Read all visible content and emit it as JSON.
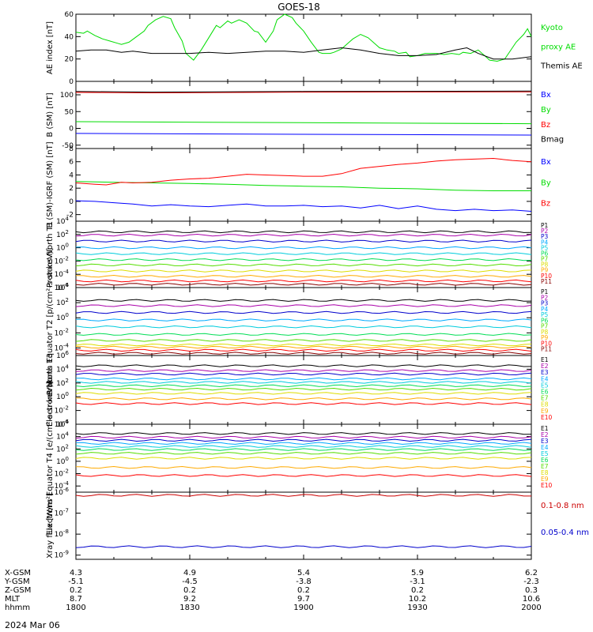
{
  "title": "GOES-18",
  "date_label": "2024 Mar 06",
  "orbit_table": {
    "row_labels": [
      "X-GSM",
      "Y-GSM",
      "Z-GSM",
      "MLT",
      "hhmm"
    ],
    "columns": [
      [
        "4.3",
        "-5.1",
        "0.2",
        "8.7",
        "1800"
      ],
      [
        "4.9",
        "-4.5",
        "0.2",
        "9.2",
        "1830"
      ],
      [
        "5.4",
        "-3.8",
        "0.2",
        "9.7",
        "1900"
      ],
      [
        "5.9",
        "-3.1",
        "0.2",
        "10.2",
        "1930"
      ],
      [
        "6.2",
        "-2.3",
        "0.3",
        "10.6",
        "2000"
      ]
    ]
  },
  "chart_data": [
    {
      "type": "line",
      "ylabel": "AE index [nT]",
      "ylim": [
        0,
        60
      ],
      "yticks": [
        "0",
        "20",
        "40",
        "60"
      ],
      "x": "time 18:00 - 20:00 UT",
      "series": [
        {
          "name": "Kyoto proxy AE",
          "color": "#00dd00",
          "x": [
            0,
            2,
            3,
            5,
            7,
            9,
            11,
            12,
            14,
            16,
            18,
            19,
            21,
            23,
            25,
            26,
            28,
            29,
            31,
            33,
            35,
            37,
            38,
            40,
            41,
            43,
            45,
            47,
            48,
            50,
            52,
            53,
            55,
            57,
            58,
            60,
            62,
            64,
            65,
            67,
            68,
            70,
            72,
            73,
            75,
            77,
            79,
            80,
            82,
            84,
            85,
            87,
            88,
            90,
            92,
            94,
            95,
            97,
            99,
            101,
            102,
            104,
            106,
            108,
            109,
            111,
            113,
            114,
            116,
            118,
            119,
            120
          ],
          "values": [
            44,
            43,
            45,
            41,
            38,
            36,
            34,
            33,
            35,
            40,
            45,
            50,
            55,
            58,
            56,
            48,
            36,
            25,
            19,
            28,
            39,
            50,
            48,
            54,
            52,
            55,
            52,
            45,
            44,
            35,
            45,
            55,
            60,
            57,
            52,
            45,
            35,
            26,
            25,
            25,
            26,
            29,
            35,
            38,
            42,
            39,
            33,
            30,
            28,
            27,
            25,
            26,
            22,
            23,
            25,
            25,
            25,
            24,
            25,
            24,
            26,
            25,
            28,
            22,
            19,
            18,
            20,
            25,
            35,
            42,
            47,
            40
          ]
        },
        {
          "name": "Themis AE",
          "color": "#000000",
          "x": [
            0,
            4,
            8,
            12,
            15,
            20,
            25,
            30,
            35,
            40,
            45,
            50,
            55,
            60,
            65,
            70,
            75,
            80,
            85,
            90,
            95,
            100,
            103,
            106,
            110,
            115,
            120
          ],
          "values": [
            27,
            28,
            28,
            26,
            27,
            25,
            25,
            25,
            26,
            25,
            26,
            27,
            27,
            26,
            28,
            30,
            28,
            25,
            23,
            23,
            24,
            28,
            30,
            25,
            20,
            20,
            22
          ]
        }
      ]
    },
    {
      "type": "line",
      "ylabel": "B (SM) [nT]",
      "ylim": [
        -60,
        140
      ],
      "yticks": [
        "-50",
        "0",
        "50",
        "100"
      ],
      "series": [
        {
          "name": "Bx",
          "color": "#0000ff",
          "x": [
            0,
            120
          ],
          "values": [
            -15,
            -20
          ]
        },
        {
          "name": "By",
          "color": "#00dd00",
          "x": [
            0,
            120
          ],
          "values": [
            20,
            14
          ]
        },
        {
          "name": "Bz",
          "color": "#ff0000",
          "x": [
            0,
            20,
            60,
            120
          ],
          "values": [
            107,
            106,
            108,
            109
          ]
        },
        {
          "name": "Bmag",
          "color": "#000000",
          "x": [
            0,
            20,
            60,
            120
          ],
          "values": [
            110,
            108,
            110,
            111
          ]
        }
      ]
    },
    {
      "type": "line",
      "ylabel": "B (SM)-IGRF (SM) [nT]",
      "ylim": [
        -3,
        8
      ],
      "yticks": [
        "-2",
        "0",
        "2",
        "4",
        "6",
        "8"
      ],
      "series": [
        {
          "name": "Bx",
          "color": "#0000ff",
          "x": [
            0,
            5,
            10,
            15,
            20,
            25,
            30,
            35,
            40,
            45,
            50,
            55,
            60,
            65,
            70,
            75,
            80,
            85,
            90,
            95,
            100,
            105,
            110,
            115,
            120
          ],
          "values": [
            0.1,
            0.0,
            -0.2,
            -0.4,
            -0.7,
            -0.5,
            -0.7,
            -0.8,
            -0.6,
            -0.4,
            -0.7,
            -0.7,
            -0.6,
            -0.8,
            -0.7,
            -1.0,
            -0.6,
            -1.1,
            -0.7,
            -1.2,
            -1.4,
            -1.2,
            -1.4,
            -1.3,
            -1.5
          ]
        },
        {
          "name": "By",
          "color": "#00dd00",
          "x": [
            0,
            10,
            20,
            30,
            40,
            50,
            60,
            70,
            80,
            90,
            100,
            110,
            120
          ],
          "values": [
            3.0,
            2.9,
            2.8,
            2.7,
            2.6,
            2.4,
            2.3,
            2.2,
            2.0,
            1.9,
            1.7,
            1.6,
            1.6
          ]
        },
        {
          "name": "Bz",
          "color": "#ff0000",
          "x": [
            0,
            5,
            8,
            12,
            15,
            20,
            25,
            30,
            35,
            40,
            45,
            50,
            55,
            60,
            65,
            70,
            75,
            80,
            85,
            90,
            95,
            100,
            105,
            110,
            115,
            120
          ],
          "values": [
            2.8,
            2.6,
            2.5,
            2.9,
            2.8,
            2.9,
            3.2,
            3.4,
            3.5,
            3.8,
            4.1,
            4.0,
            3.9,
            3.8,
            3.8,
            4.2,
            5.0,
            5.3,
            5.6,
            5.8,
            6.1,
            6.3,
            6.4,
            6.5,
            6.2,
            6.0
          ]
        }
      ]
    },
    {
      "type": "line",
      "ylabel": "Protons North T1",
      "yscale": "log",
      "ylim": [
        -6,
        4
      ],
      "yticks": [
        "10^-6",
        "10^-4",
        "10^-2",
        "10^0",
        "10^2",
        "10^4"
      ],
      "series": [
        {
          "name": "P1",
          "color": "#000000",
          "level": 2.4
        },
        {
          "name": "P2",
          "color": "#aa00aa",
          "level": 1.9
        },
        {
          "name": "P3",
          "color": "#0000cc",
          "level": 1.0
        },
        {
          "name": "P4",
          "color": "#00aaff",
          "level": 0.0
        },
        {
          "name": "P5",
          "color": "#00ccdd",
          "level": -0.9
        },
        {
          "name": "P6",
          "color": "#00dd55",
          "level": -1.8
        },
        {
          "name": "P7",
          "color": "#55dd00",
          "level": -2.6
        },
        {
          "name": "P8",
          "color": "#dddd00",
          "level": -3.5
        },
        {
          "name": "P9",
          "color": "#ffaa00",
          "level": -4.3
        },
        {
          "name": "P10",
          "color": "#ff0000",
          "level": -5.0
        },
        {
          "name": "P11",
          "color": "#880000",
          "level": -5.5
        }
      ]
    },
    {
      "type": "line",
      "ylabel": "Protons Equator T2 [p/(cm²-s-sr-keV)]",
      "yscale": "log",
      "ylim": [
        -5,
        4
      ],
      "yticks": [
        "10^-4",
        "10^-2",
        "10^0",
        "10^2",
        "10^4"
      ],
      "series": [
        {
          "name": "P1",
          "color": "#000000",
          "level": 2.3
        },
        {
          "name": "P2",
          "color": "#aa00aa",
          "level": 1.6
        },
        {
          "name": "P3",
          "color": "#0000cc",
          "level": 0.7
        },
        {
          "name": "P4",
          "color": "#00aaff",
          "level": -0.3
        },
        {
          "name": "P5",
          "color": "#00ccdd",
          "level": -1.2
        },
        {
          "name": "P6",
          "color": "#00dd55",
          "level": -2.2
        },
        {
          "name": "P7",
          "color": "#55dd00",
          "level": -3.0
        },
        {
          "name": "P8",
          "color": "#dddd00",
          "level": -3.6
        },
        {
          "name": "P9",
          "color": "#ffaa00",
          "level": -3.9
        },
        {
          "name": "P10",
          "color": "#ff0000",
          "level": -4.3
        },
        {
          "name": "P11",
          "color": "#880000",
          "level": -4.7
        }
      ]
    },
    {
      "type": "line",
      "ylabel": "Electrons North T3",
      "yscale": "log",
      "ylim": [
        -4,
        6
      ],
      "yticks": [
        "10^-4",
        "10^-2",
        "10^0",
        "10^2",
        "10^4",
        "10^6"
      ],
      "series": [
        {
          "name": "E1",
          "color": "#000000",
          "level": 4.5
        },
        {
          "name": "E2",
          "color": "#aa00aa",
          "level": 3.8
        },
        {
          "name": "E3",
          "color": "#0000cc",
          "level": 3.3
        },
        {
          "name": "E4",
          "color": "#00aaff",
          "level": 2.6
        },
        {
          "name": "E5",
          "color": "#00ccdd",
          "level": 2.1
        },
        {
          "name": "E6",
          "color": "#00dd55",
          "level": 1.6
        },
        {
          "name": "E7",
          "color": "#55dd00",
          "level": 1.1
        },
        {
          "name": "E8",
          "color": "#dddd00",
          "level": 0.5
        },
        {
          "name": "E9",
          "color": "#ffaa00",
          "level": -0.3
        },
        {
          "name": "E10",
          "color": "#ff0000",
          "level": -1.0
        }
      ]
    },
    {
      "type": "line",
      "ylabel": "Electrons Equator T4 [e/(cm²-s-sr-keV)]",
      "yscale": "log",
      "ylim": [
        -5,
        6
      ],
      "yticks": [
        "10^-4",
        "10^-2",
        "10^0",
        "10^2",
        "10^4",
        "10^6"
      ],
      "series": [
        {
          "name": "E1",
          "color": "#000000",
          "level": 4.5
        },
        {
          "name": "E2",
          "color": "#aa00aa",
          "level": 3.9
        },
        {
          "name": "E3",
          "color": "#0000cc",
          "level": 3.4
        },
        {
          "name": "E4",
          "color": "#00aaff",
          "level": 2.9
        },
        {
          "name": "E5",
          "color": "#00ccdd",
          "level": 2.4
        },
        {
          "name": "E6",
          "color": "#00dd55",
          "level": 1.9
        },
        {
          "name": "E7",
          "color": "#55dd00",
          "level": 1.3
        },
        {
          "name": "E8",
          "color": "#dddd00",
          "level": 0.5
        },
        {
          "name": "E9",
          "color": "#ffaa00",
          "level": -1.0
        },
        {
          "name": "E10",
          "color": "#ff0000",
          "level": -2.3
        }
      ]
    },
    {
      "type": "line",
      "ylabel": "Xray flux [W/m²]",
      "yscale": "log",
      "ylim": [
        -9.2,
        -6
      ],
      "yticks": [
        "10^-9",
        "10^-8",
        "10^-7",
        "10^-6"
      ],
      "series": [
        {
          "name": "0.1-0.8 nm",
          "color": "#cc0000",
          "level": -6.15
        },
        {
          "name": "0.05-0.4 nm",
          "color": "#0000cc",
          "level": -8.6
        }
      ]
    }
  ],
  "legend_labels": [
    [
      "Kyoto",
      "proxy AE",
      "Themis AE"
    ],
    [
      "Bx",
      "By",
      "Bz",
      "Bmag"
    ],
    [
      "Bx",
      "By",
      "Bz"
    ],
    [
      "P1",
      "P2",
      "P3",
      "P4",
      "P5",
      "P6",
      "P7",
      "P8",
      "P9",
      "P10",
      "P11"
    ],
    [
      "P1",
      "P2",
      "P3",
      "P4",
      "P5",
      "P6",
      "P7",
      "P8",
      "P9",
      "P10",
      "P11"
    ],
    [
      "E1",
      "E2",
      "E3",
      "E4",
      "E5",
      "E6",
      "E7",
      "E8",
      "E9",
      "E10"
    ],
    [
      "E1",
      "E2",
      "E3",
      "E4",
      "E5",
      "E6",
      "E7",
      "E8",
      "E9",
      "E10"
    ],
    [
      "0.1-0.8 nm",
      "0.05-0.4 nm"
    ]
  ]
}
